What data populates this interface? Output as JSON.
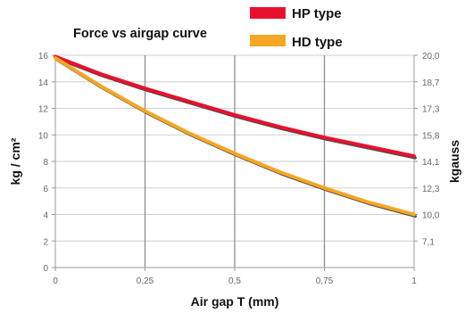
{
  "chart_data": {
    "type": "line",
    "title": "Force vs airgap curve",
    "xlabel": "Air gap T (mm)",
    "ylabel": "kg / cm²",
    "y2label": "kgauss",
    "xlim": [
      0,
      1
    ],
    "ylim": [
      0,
      16
    ],
    "x_ticks": [
      "0",
      "0,25",
      "0,5",
      "0,75",
      "1"
    ],
    "y_ticks": [
      "0",
      "2",
      "4",
      "6",
      "8",
      "10",
      "12",
      "14",
      "16"
    ],
    "y2_ticks": [
      "7,1",
      "10,0",
      "12,3",
      "14,1",
      "15,8",
      "17,3",
      "18,7",
      "20,0"
    ],
    "grid": true,
    "legend_position": "top",
    "series": [
      {
        "name": "HP type",
        "color": "#e8112d",
        "x": [
          0,
          0.125,
          0.25,
          0.375,
          0.5,
          0.625,
          0.75,
          0.875,
          1
        ],
        "y": [
          15.9,
          14.6,
          13.5,
          12.5,
          11.5,
          10.6,
          9.8,
          9.1,
          8.4
        ]
      },
      {
        "name": "HD type",
        "color": "#f5a623",
        "x": [
          0,
          0.125,
          0.25,
          0.375,
          0.5,
          0.625,
          0.75,
          0.875,
          1
        ],
        "y": [
          15.8,
          13.7,
          11.8,
          10.1,
          8.6,
          7.2,
          6.0,
          4.9,
          4.0
        ]
      }
    ]
  }
}
